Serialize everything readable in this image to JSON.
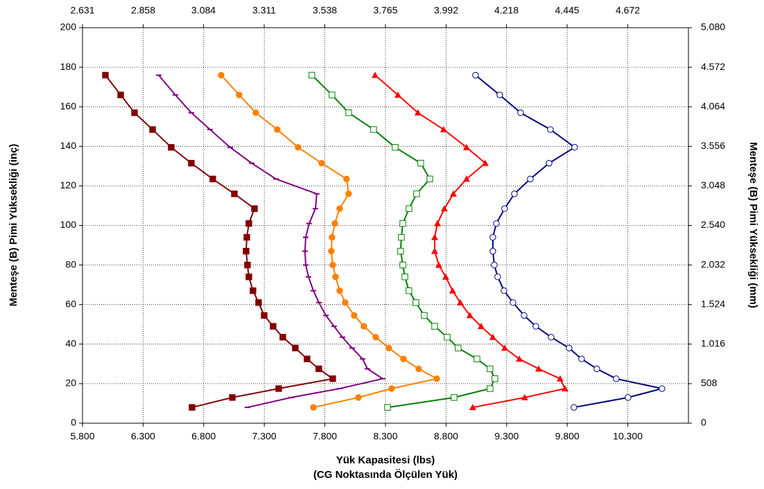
{
  "chart_data": {
    "type": "scatter",
    "xlabel": "Yük Kapasitesi (lbs)",
    "xlabel2": "(CG Noktasında Ölçülen Yük)",
    "ylabel": "Menteşe (B) Pimi Yüksekliği (inç)",
    "y2label": "Menteşe (B) Pimi Yüksekliği (mm)",
    "xlim": [
      5800,
      10800
    ],
    "xticks": [
      {
        "value": 5800,
        "label": "5.800"
      },
      {
        "value": 6300,
        "label": "6.300"
      },
      {
        "value": 6800,
        "label": "6.800"
      },
      {
        "value": 7300,
        "label": "7.300"
      },
      {
        "value": 7800,
        "label": "7.800"
      },
      {
        "value": 8300,
        "label": "8.300"
      },
      {
        "value": 8800,
        "label": "8.800"
      },
      {
        "value": 9300,
        "label": "9.300"
      },
      {
        "value": 9800,
        "label": "9.800"
      },
      {
        "value": 10300,
        "label": "10.300"
      }
    ],
    "x2lim": [
      2631,
      4899
    ],
    "x2ticks": [
      {
        "value": 2631,
        "label": "2.631"
      },
      {
        "value": 2858,
        "label": "2.858"
      },
      {
        "value": 3084,
        "label": "3.084"
      },
      {
        "value": 3311,
        "label": "3.311"
      },
      {
        "value": 3538,
        "label": "3.538"
      },
      {
        "value": 3765,
        "label": "3.765"
      },
      {
        "value": 3992,
        "label": "3.992"
      },
      {
        "value": 4218,
        "label": "4.218"
      },
      {
        "value": 4445,
        "label": "4.445"
      },
      {
        "value": 4672,
        "label": "4.672"
      }
    ],
    "ylim": [
      0,
      200
    ],
    "yticks": [
      0,
      20,
      40,
      60,
      80,
      100,
      120,
      140,
      160,
      180,
      200
    ],
    "y2lim": [
      0,
      5080
    ],
    "y2ticks": [
      0,
      508,
      {
        "value": 1016,
        "label": "1.016"
      },
      {
        "value": 1524,
        "label": "1.524"
      },
      {
        "value": 2032,
        "label": "2.032"
      },
      {
        "value": 2540,
        "label": "2.540"
      },
      {
        "value": 3048,
        "label": "3.048"
      },
      {
        "value": 3556,
        "label": "3.556"
      },
      {
        "value": 4064,
        "label": "4.064"
      },
      {
        "value": 4572,
        "label": "4.572"
      },
      {
        "value": 5080,
        "label": "5.080"
      }
    ],
    "grid": true,
    "series": [
      {
        "color": "#800000",
        "marker": "square",
        "x": [
          6704,
          7036,
          7419,
          7865,
          7750,
          7653,
          7556,
          7453,
          7373,
          7299,
          7253,
          7207,
          7173,
          7161,
          7150,
          7156,
          7173,
          7219,
          7053,
          6875,
          6698,
          6532,
          6378,
          6229,
          6115,
          5989
        ],
        "values": [
          8,
          13,
          17.5,
          22.5,
          27.5,
          32.5,
          38,
          43.5,
          49,
          54.5,
          61,
          67,
          74,
          80,
          87,
          94,
          101,
          108.5,
          116,
          123.5,
          131.5,
          139.5,
          148.5,
          157,
          166,
          176
        ]
      },
      {
        "color": "#800080",
        "marker": "dash",
        "x": [
          7161,
          7522,
          7922,
          8277,
          8151,
          8111,
          8025,
          7945,
          7876,
          7808,
          7751,
          7705,
          7665,
          7642,
          7636,
          7642,
          7670,
          7722,
          7733,
          7396,
          7196,
          7018,
          6852,
          6698,
          6566,
          6429
        ],
        "values": [
          8,
          13,
          17.5,
          22.5,
          27.5,
          32.5,
          38,
          43.5,
          49,
          54.5,
          61,
          67,
          74,
          80,
          87,
          94,
          101,
          108.5,
          116,
          123.5,
          131.5,
          139.5,
          148.5,
          157,
          166,
          176
        ]
      },
      {
        "color": "#FF8000",
        "marker": "circle",
        "x": [
          7705,
          8077,
          8351,
          8723,
          8574,
          8448,
          8328,
          8220,
          8122,
          8042,
          7968,
          7922,
          7888,
          7865,
          7853,
          7859,
          7882,
          7922,
          7996,
          7979,
          7773,
          7579,
          7407,
          7230,
          7093,
          6944
        ],
        "values": [
          8,
          13,
          17.5,
          22.5,
          27.5,
          32.5,
          38,
          43.5,
          49,
          54.5,
          61,
          67,
          74,
          80,
          87,
          94,
          101,
          108.5,
          116,
          123.5,
          131.5,
          139.5,
          148.5,
          157,
          166,
          176
        ]
      },
      {
        "color": "#008000",
        "marker": "open-square",
        "x": [
          8317,
          8866,
          9163,
          9203,
          9163,
          9055,
          8900,
          8809,
          8706,
          8620,
          8551,
          8494,
          8460,
          8443,
          8425,
          8431,
          8443,
          8494,
          8557,
          8666,
          8591,
          8380,
          8202,
          7996,
          7859,
          7693
        ],
        "values": [
          8,
          13,
          17.5,
          22.5,
          27.5,
          32.5,
          38,
          43.5,
          49,
          54.5,
          61,
          67,
          74,
          80,
          87,
          94,
          101,
          108.5,
          116,
          123.5,
          131.5,
          139.5,
          148.5,
          157,
          166,
          176
        ]
      },
      {
        "color": "#FF0000",
        "marker": "triangle",
        "x": [
          9020,
          9449,
          9781,
          9741,
          9564,
          9404,
          9284,
          9186,
          9089,
          8997,
          8917,
          8854,
          8797,
          8740,
          8706,
          8706,
          8729,
          8786,
          8860,
          8969,
          9123,
          8969,
          8780,
          8568,
          8403,
          8214
        ],
        "values": [
          8,
          13,
          17.5,
          22.5,
          27.5,
          32.5,
          38,
          43.5,
          49,
          54.5,
          61,
          67,
          74,
          80,
          87,
          94,
          101,
          108.5,
          116,
          123.5,
          131.5,
          139.5,
          148.5,
          157,
          166,
          176
        ]
      },
      {
        "color": "#000080",
        "marker": "open-circle",
        "x": [
          9855,
          10302,
          10582,
          10204,
          10044,
          9918,
          9815,
          9667,
          9541,
          9444,
          9352,
          9278,
          9226,
          9198,
          9186,
          9186,
          9215,
          9283,
          9364,
          9495,
          9650,
          9861,
          9661,
          9415,
          9243,
          9043
        ],
        "values": [
          8,
          13,
          17.5,
          22.5,
          27.5,
          32.5,
          38,
          43.5,
          49,
          54.5,
          61,
          67,
          74,
          80,
          87,
          94,
          101,
          108.5,
          116,
          123.5,
          131.5,
          139.5,
          148.5,
          157,
          166,
          176
        ]
      }
    ]
  }
}
